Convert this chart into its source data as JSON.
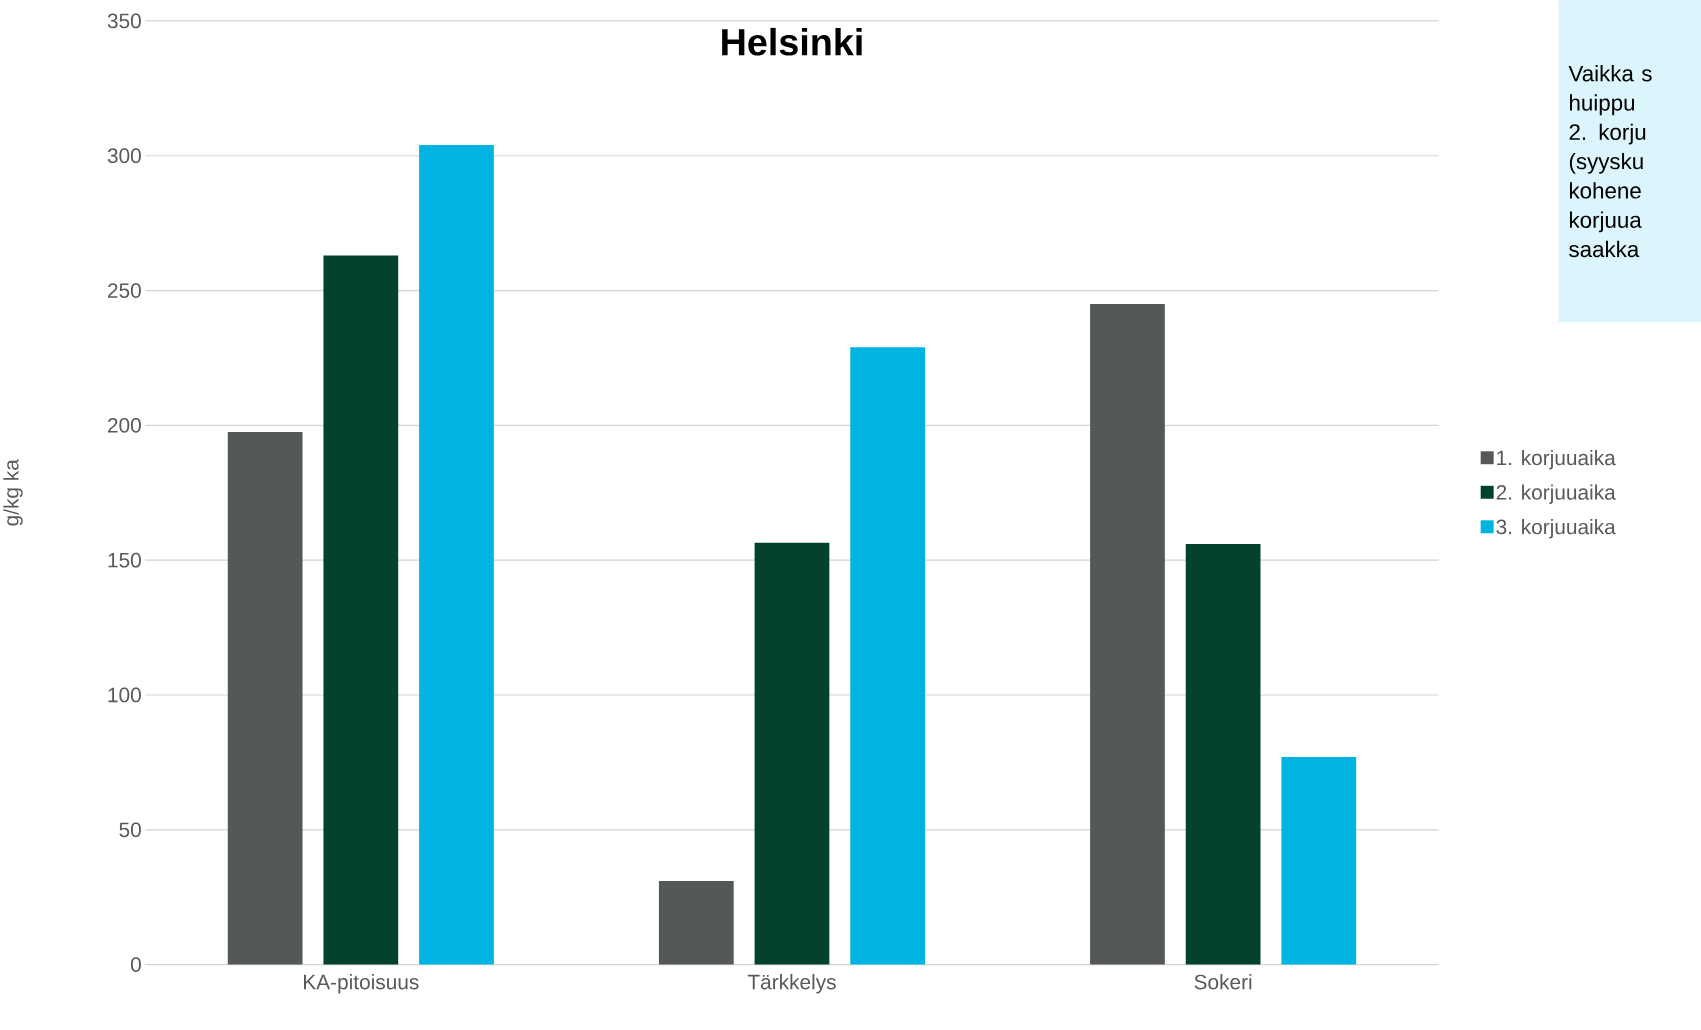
{
  "chart_data": {
    "type": "bar",
    "title": "Helsinki",
    "ylabel": "g/kg ka",
    "categories": [
      "KA-pitoisuus",
      "Tärkkelys",
      "Sokeri"
    ],
    "series": [
      {
        "name": "1. korjuuaika",
        "color": "#545859",
        "values": [
          197.5,
          31,
          245
        ]
      },
      {
        "name": "2. korjuuaika",
        "color": "#03432b",
        "values": [
          263,
          156.5,
          156
        ]
      },
      {
        "name": "3. korjuuaika",
        "color": "#00b4e1",
        "values": [
          304,
          229,
          77
        ]
      }
    ],
    "ylim": [
      0,
      350
    ],
    "yticks": [
      0,
      50,
      100,
      150,
      200,
      250,
      300,
      350
    ],
    "grid": "y",
    "legend": "right",
    "annotations": [
      "Vaikka s",
      "huippu",
      "2. korju",
      "(syysku",
      "kohene",
      "korjuua",
      "saakka"
    ]
  }
}
